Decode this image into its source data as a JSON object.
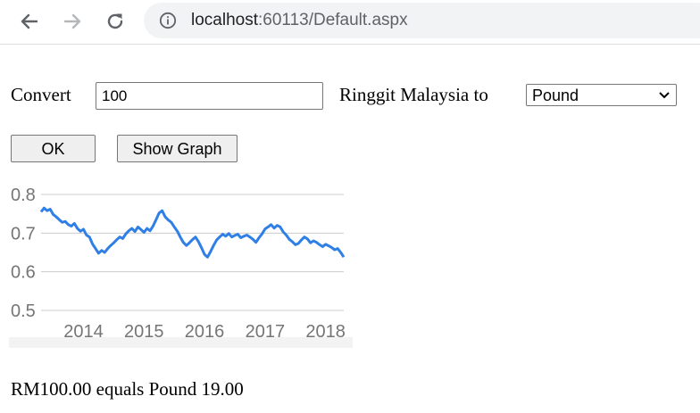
{
  "browser": {
    "url_host": "localhost",
    "url_path": ":60113/Default.aspx",
    "icons": [
      "back-arrow-icon",
      "forward-arrow-icon",
      "reload-icon",
      "info-icon"
    ]
  },
  "form": {
    "convert_label": "Convert",
    "amount_value": "100",
    "from_label": "Ringgit Malaysia to",
    "currency_selected": "Pound",
    "ok_label": "OK",
    "show_graph_label": "Show Graph"
  },
  "result_text": "RM100.00 equals Pound 19.00",
  "chart_data": {
    "type": "line",
    "title": "",
    "xlabel": "",
    "ylabel": "",
    "x_tick_labels": [
      "2014",
      "2015",
      "2016",
      "2017",
      "2018"
    ],
    "y_tick_labels": [
      "0.8",
      "0.7",
      "0.6",
      "0.5"
    ],
    "y_ticks": [
      0.8,
      0.7,
      0.6,
      0.5
    ],
    "ylim": [
      0.5,
      0.8
    ],
    "xlim": [
      2013.3,
      2018.3
    ],
    "grid": true,
    "line_color": "#2f7fe6",
    "series": [
      {
        "x": [
          2013.3,
          2013.35,
          2013.4,
          2013.45,
          2013.5,
          2013.55,
          2013.6,
          2013.65,
          2013.7,
          2013.75,
          2013.8,
          2013.85,
          2013.9,
          2013.95,
          2014.0,
          2014.05,
          2014.1,
          2014.15,
          2014.2,
          2014.25,
          2014.3,
          2014.35,
          2014.4,
          2014.45,
          2014.5,
          2014.55,
          2014.6,
          2014.65,
          2014.7,
          2014.75,
          2014.8,
          2014.85,
          2014.9,
          2014.95,
          2015.0,
          2015.05,
          2015.1,
          2015.15,
          2015.2,
          2015.25,
          2015.3,
          2015.35,
          2015.4,
          2015.45,
          2015.5,
          2015.55,
          2015.6,
          2015.65,
          2015.7,
          2015.75,
          2015.8,
          2015.85,
          2015.9,
          2015.95,
          2016.0,
          2016.05,
          2016.1,
          2016.15,
          2016.2,
          2016.25,
          2016.3,
          2016.35,
          2016.4,
          2016.45,
          2016.5,
          2016.55,
          2016.6,
          2016.65,
          2016.7,
          2016.75,
          2016.8,
          2016.85,
          2016.9,
          2016.95,
          2017.0,
          2017.05,
          2017.1,
          2017.15,
          2017.2,
          2017.25,
          2017.3,
          2017.35,
          2017.4,
          2017.45,
          2017.5,
          2017.55,
          2017.6,
          2017.65,
          2017.7,
          2017.75,
          2017.8,
          2017.85,
          2017.9,
          2017.95,
          2018.0,
          2018.05,
          2018.1,
          2018.15,
          2018.2,
          2018.25,
          2018.3
        ],
        "values": [
          0.755,
          0.765,
          0.758,
          0.762,
          0.748,
          0.742,
          0.735,
          0.728,
          0.73,
          0.722,
          0.718,
          0.725,
          0.712,
          0.705,
          0.71,
          0.695,
          0.69,
          0.672,
          0.66,
          0.648,
          0.655,
          0.65,
          0.66,
          0.668,
          0.675,
          0.683,
          0.69,
          0.686,
          0.698,
          0.706,
          0.712,
          0.704,
          0.716,
          0.709,
          0.702,
          0.712,
          0.706,
          0.718,
          0.735,
          0.752,
          0.758,
          0.742,
          0.734,
          0.728,
          0.716,
          0.705,
          0.69,
          0.676,
          0.668,
          0.675,
          0.683,
          0.69,
          0.678,
          0.662,
          0.645,
          0.638,
          0.652,
          0.668,
          0.682,
          0.69,
          0.697,
          0.692,
          0.699,
          0.69,
          0.694,
          0.697,
          0.688,
          0.692,
          0.695,
          0.69,
          0.684,
          0.676,
          0.688,
          0.698,
          0.711,
          0.716,
          0.722,
          0.713,
          0.72,
          0.716,
          0.703,
          0.695,
          0.684,
          0.678,
          0.67,
          0.673,
          0.682,
          0.69,
          0.685,
          0.675,
          0.68,
          0.676,
          0.67,
          0.665,
          0.671,
          0.667,
          0.663,
          0.657,
          0.66,
          0.65,
          0.638
        ]
      }
    ]
  }
}
